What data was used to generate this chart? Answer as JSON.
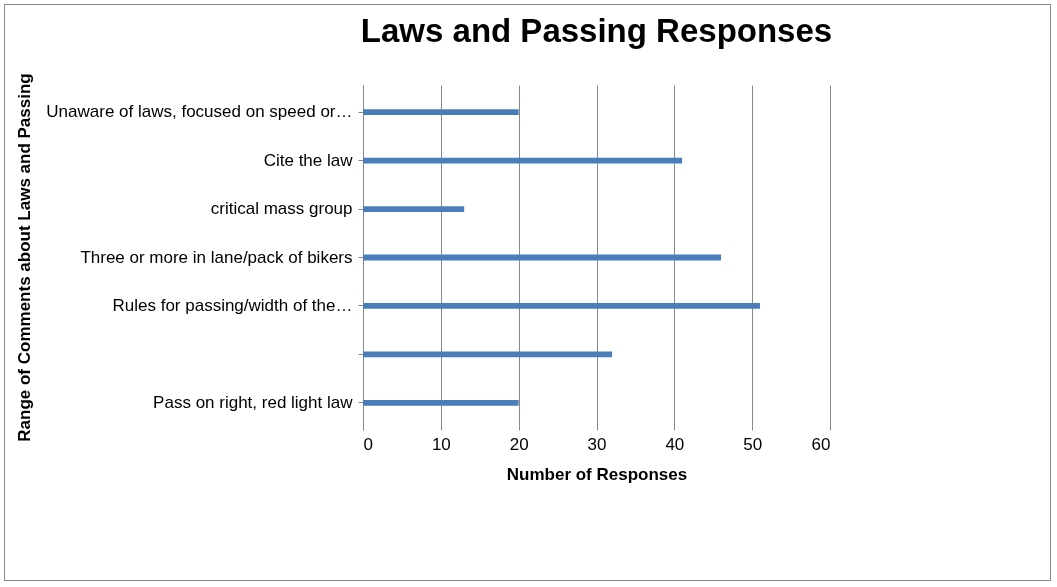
{
  "chart_data": {
    "type": "bar",
    "orientation": "horizontal",
    "title": "Laws and Passing Responses",
    "xlabel": "Number of Responses",
    "ylabel": "Range of Comments about Laws and Passing",
    "categories": [
      "Unaware of laws, focused on speed or…",
      "Cite the law",
      "critical mass group",
      "Three or more in lane/pack of bikers",
      "Rules for passing/width of the…",
      null,
      "Pass on right, red light law"
    ],
    "values": [
      20,
      41,
      13,
      46,
      51,
      32,
      20
    ],
    "color": "#4a7ebb",
    "xlim": [
      0,
      60
    ],
    "xticks": [
      0,
      10,
      20,
      30,
      40,
      50,
      60
    ],
    "grid": "x"
  }
}
